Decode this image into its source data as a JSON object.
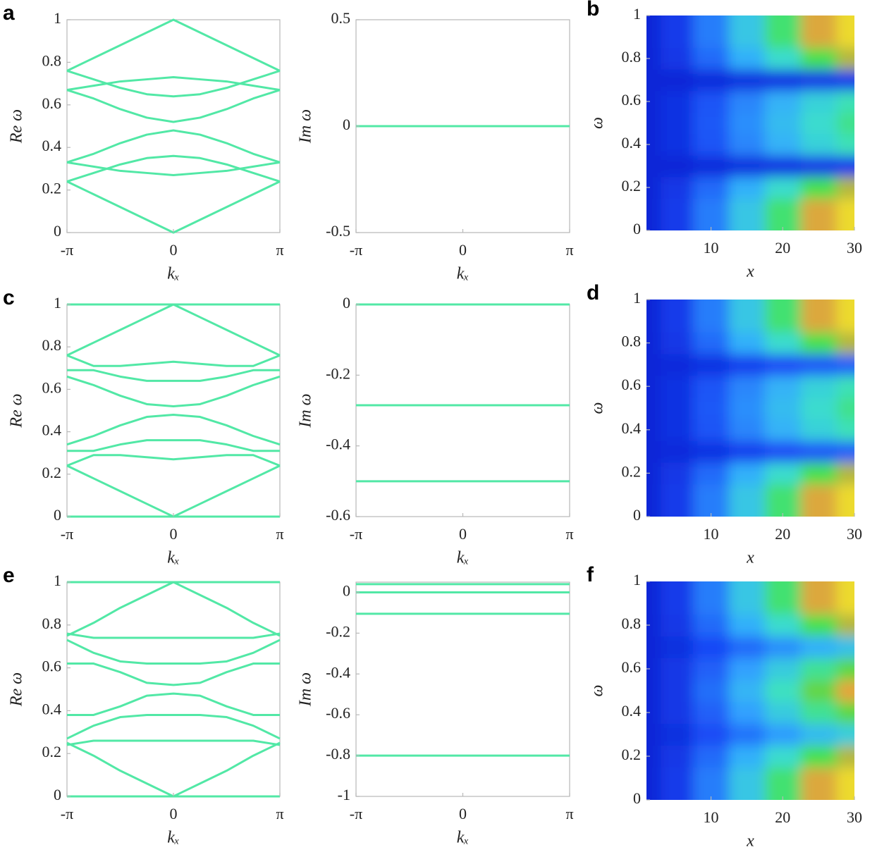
{
  "chart_data": [
    {
      "type": "line",
      "panel_label": "a",
      "xlabel": "kₓ",
      "ylabel": "Re ω",
      "color": "#52e8a6",
      "x": [
        -3.1416,
        -2.3562,
        -1.5708,
        -0.7854,
        0,
        0.7854,
        1.5708,
        2.3562,
        3.1416
      ],
      "xlim": [
        -3.1416,
        3.1416
      ],
      "xticks": [
        {
          "value": -3.1416,
          "label": "-π"
        },
        0,
        {
          "value": 3.1416,
          "label": "π"
        }
      ],
      "ylim": [
        0,
        1
      ],
      "yticks": [
        0,
        0.2,
        0.4,
        0.6,
        0.8,
        1
      ],
      "series": [
        {
          "values": [
            0.24,
            0.18,
            0.12,
            0.06,
            0,
            0.06,
            0.12,
            0.18,
            0.24
          ]
        },
        {
          "values": [
            0.33,
            0.37,
            0.42,
            0.46,
            0.48,
            0.46,
            0.42,
            0.37,
            0.33
          ]
        },
        {
          "values": [
            0.24,
            0.28,
            0.32,
            0.35,
            0.36,
            0.35,
            0.32,
            0.28,
            0.24
          ]
        },
        {
          "values": [
            0.33,
            0.31,
            0.29,
            0.28,
            0.27,
            0.28,
            0.29,
            0.31,
            0.33
          ]
        },
        {
          "values": [
            0.76,
            0.82,
            0.88,
            0.94,
            1,
            0.94,
            0.88,
            0.82,
            0.76
          ]
        },
        {
          "values": [
            0.67,
            0.63,
            0.58,
            0.54,
            0.52,
            0.54,
            0.58,
            0.63,
            0.67
          ]
        },
        {
          "values": [
            0.76,
            0.72,
            0.68,
            0.65,
            0.64,
            0.65,
            0.68,
            0.72,
            0.76
          ]
        },
        {
          "values": [
            0.67,
            0.69,
            0.71,
            0.72,
            0.73,
            0.72,
            0.71,
            0.69,
            0.67
          ]
        }
      ]
    },
    {
      "type": "line",
      "xlabel": "kₓ",
      "ylabel": "Im ω",
      "color": "#52e8a6",
      "x": [
        -3.1416,
        0,
        3.1416
      ],
      "xlim": [
        -3.1416,
        3.1416
      ],
      "xticks": [
        {
          "value": -3.1416,
          "label": "-π"
        },
        0,
        {
          "value": 3.1416,
          "label": "π"
        }
      ],
      "ylim": [
        -0.5,
        0.5
      ],
      "yticks": [
        -0.5,
        0,
        0.5
      ],
      "series": [
        {
          "values": [
            0,
            0,
            0
          ]
        }
      ]
    },
    {
      "type": "heatmap",
      "panel_label": "b",
      "xlabel": "x",
      "ylabel": "ω",
      "x": [
        1,
        5,
        10,
        15,
        20,
        25,
        30
      ],
      "y": [
        0,
        0.1,
        0.2,
        0.3,
        0.4,
        0.5,
        0.6,
        0.7,
        0.8,
        0.9,
        1
      ],
      "xlim": [
        1,
        30
      ],
      "xticks": [
        10,
        20,
        30
      ],
      "ylim": [
        0,
        1
      ],
      "yticks": [
        0,
        0.2,
        0.4,
        0.6,
        0.8,
        1
      ],
      "values": [
        [
          0,
          0.05,
          0.2,
          0.4,
          0.6,
          0.8,
          0.95
        ],
        [
          0,
          0.05,
          0.2,
          0.4,
          0.6,
          0.8,
          0.95
        ],
        [
          0,
          0.04,
          0.16,
          0.32,
          0.48,
          0.64,
          0.76
        ],
        [
          0,
          0,
          0.01,
          0.02,
          0.03,
          0.04,
          0.05
        ],
        [
          0,
          0.03,
          0.11,
          0.22,
          0.33,
          0.44,
          0.52
        ],
        [
          0,
          0.03,
          0.12,
          0.24,
          0.36,
          0.48,
          0.57
        ],
        [
          0,
          0.03,
          0.11,
          0.22,
          0.33,
          0.44,
          0.52
        ],
        [
          0,
          0,
          0.01,
          0.02,
          0.03,
          0.04,
          0.05
        ],
        [
          0,
          0.04,
          0.16,
          0.32,
          0.48,
          0.64,
          0.76
        ],
        [
          0,
          0.05,
          0.2,
          0.4,
          0.6,
          0.8,
          0.95
        ],
        [
          0,
          0.05,
          0.2,
          0.4,
          0.6,
          0.8,
          0.95
        ]
      ]
    },
    {
      "type": "line",
      "panel_label": "c",
      "xlabel": "kₓ",
      "ylabel": "Re ω",
      "color": "#52e8a6",
      "x": [
        -3.1416,
        -2.3562,
        -1.5708,
        -0.7854,
        0,
        0.7854,
        1.5708,
        2.3562,
        3.1416
      ],
      "xlim": [
        -3.1416,
        3.1416
      ],
      "xticks": [
        {
          "value": -3.1416,
          "label": "-π"
        },
        0,
        {
          "value": 3.1416,
          "label": "π"
        }
      ],
      "ylim": [
        0,
        1
      ],
      "yticks": [
        0,
        0.2,
        0.4,
        0.6,
        0.8,
        1
      ],
      "series": [
        {
          "values": [
            1,
            1,
            1,
            1,
            1,
            1,
            1,
            1,
            1
          ]
        },
        {
          "values": [
            0,
            0,
            0,
            0,
            0,
            0,
            0,
            0,
            0
          ]
        },
        {
          "values": [
            0.24,
            0.18,
            0.12,
            0.06,
            0,
            0.06,
            0.12,
            0.18,
            0.24
          ]
        },
        {
          "values": [
            0.76,
            0.82,
            0.88,
            0.94,
            1,
            0.94,
            0.88,
            0.82,
            0.76
          ]
        },
        {
          "values": [
            0.34,
            0.38,
            0.43,
            0.47,
            0.48,
            0.47,
            0.43,
            0.38,
            0.34
          ]
        },
        {
          "values": [
            0.31,
            0.31,
            0.34,
            0.36,
            0.36,
            0.36,
            0.34,
            0.31,
            0.31
          ]
        },
        {
          "values": [
            0.24,
            0.29,
            0.29,
            0.28,
            0.27,
            0.28,
            0.29,
            0.29,
            0.24
          ]
        },
        {
          "values": [
            0.66,
            0.62,
            0.57,
            0.53,
            0.52,
            0.53,
            0.57,
            0.62,
            0.66
          ]
        },
        {
          "values": [
            0.69,
            0.69,
            0.66,
            0.64,
            0.64,
            0.64,
            0.66,
            0.69,
            0.69
          ]
        },
        {
          "values": [
            0.76,
            0.71,
            0.71,
            0.72,
            0.73,
            0.72,
            0.71,
            0.71,
            0.76
          ]
        }
      ]
    },
    {
      "type": "line",
      "xlabel": "kₓ",
      "ylabel": "Im ω",
      "color": "#52e8a6",
      "x": [
        -3.1416,
        0,
        3.1416
      ],
      "xlim": [
        -3.1416,
        3.1416
      ],
      "xticks": [
        {
          "value": -3.1416,
          "label": "-π"
        },
        0,
        {
          "value": 3.1416,
          "label": "π"
        }
      ],
      "ylim": [
        -0.6,
        0
      ],
      "yticks": [
        -0.6,
        -0.4,
        -0.2,
        0
      ],
      "series": [
        {
          "values": [
            0,
            0,
            0
          ]
        },
        {
          "values": [
            -0.285,
            -0.285,
            -0.285
          ]
        },
        {
          "values": [
            -0.5,
            -0.5,
            -0.5
          ]
        }
      ]
    },
    {
      "type": "heatmap",
      "panel_label": "d",
      "xlabel": "x",
      "ylabel": "ω",
      "x": [
        1,
        5,
        10,
        15,
        20,
        25,
        30
      ],
      "y": [
        0,
        0.1,
        0.2,
        0.3,
        0.4,
        0.5,
        0.6,
        0.7,
        0.8,
        0.9,
        1
      ],
      "xlim": [
        1,
        30
      ],
      "xticks": [
        10,
        20,
        30
      ],
      "ylim": [
        0,
        1
      ],
      "yticks": [
        0,
        0.2,
        0.4,
        0.6,
        0.8,
        1
      ],
      "values": [
        [
          0,
          0.05,
          0.2,
          0.4,
          0.6,
          0.8,
          0.95
        ],
        [
          0,
          0.05,
          0.2,
          0.4,
          0.6,
          0.8,
          0.95
        ],
        [
          0,
          0.04,
          0.16,
          0.32,
          0.48,
          0.64,
          0.76
        ],
        [
          0,
          0.01,
          0.03,
          0.06,
          0.09,
          0.12,
          0.14
        ],
        [
          0,
          0.03,
          0.11,
          0.22,
          0.33,
          0.44,
          0.52
        ],
        [
          0,
          0.03,
          0.12,
          0.24,
          0.36,
          0.48,
          0.57
        ],
        [
          0,
          0.03,
          0.11,
          0.22,
          0.33,
          0.44,
          0.52
        ],
        [
          0,
          0.01,
          0.03,
          0.06,
          0.09,
          0.12,
          0.14
        ],
        [
          0,
          0.04,
          0.16,
          0.32,
          0.48,
          0.64,
          0.76
        ],
        [
          0,
          0.05,
          0.2,
          0.4,
          0.6,
          0.8,
          0.95
        ],
        [
          0,
          0.05,
          0.2,
          0.4,
          0.6,
          0.8,
          0.95
        ]
      ]
    },
    {
      "type": "line",
      "panel_label": "e",
      "xlabel": "kₓ",
      "ylabel": "Re ω",
      "color": "#52e8a6",
      "x": [
        -3.1416,
        -2.3562,
        -1.5708,
        -0.7854,
        0,
        0.7854,
        1.5708,
        2.3562,
        3.1416
      ],
      "xlim": [
        -3.1416,
        3.1416
      ],
      "xticks": [
        {
          "value": -3.1416,
          "label": "-π"
        },
        0,
        {
          "value": 3.1416,
          "label": "π"
        }
      ],
      "ylim": [
        0,
        1
      ],
      "yticks": [
        0,
        0.2,
        0.4,
        0.6,
        0.8,
        1
      ],
      "series": [
        {
          "values": [
            1,
            1,
            1,
            1,
            1,
            1,
            1,
            1,
            1
          ]
        },
        {
          "values": [
            0,
            0,
            0,
            0,
            0,
            0,
            0,
            0,
            0
          ]
        },
        {
          "values": [
            0.25,
            0.19,
            0.12,
            0.06,
            0,
            0.06,
            0.12,
            0.19,
            0.25
          ]
        },
        {
          "values": [
            0.75,
            0.81,
            0.88,
            0.94,
            1,
            0.94,
            0.88,
            0.81,
            0.75
          ]
        },
        {
          "values": [
            0.38,
            0.38,
            0.42,
            0.47,
            0.48,
            0.47,
            0.42,
            0.38,
            0.38
          ]
        },
        {
          "values": [
            0.27,
            0.33,
            0.37,
            0.38,
            0.38,
            0.38,
            0.37,
            0.33,
            0.27
          ]
        },
        {
          "values": [
            0.24,
            0.26,
            0.26,
            0.26,
            0.26,
            0.26,
            0.26,
            0.26,
            0.24
          ]
        },
        {
          "values": [
            0.62,
            0.62,
            0.58,
            0.53,
            0.52,
            0.53,
            0.58,
            0.62,
            0.62
          ]
        },
        {
          "values": [
            0.73,
            0.67,
            0.63,
            0.62,
            0.62,
            0.62,
            0.63,
            0.67,
            0.73
          ]
        },
        {
          "values": [
            0.76,
            0.74,
            0.74,
            0.74,
            0.74,
            0.74,
            0.74,
            0.74,
            0.76
          ]
        }
      ]
    },
    {
      "type": "line",
      "xlabel": "kₓ",
      "ylabel": "Im ω",
      "color": "#52e8a6",
      "x": [
        -3.1416,
        0,
        3.1416
      ],
      "xlim": [
        -3.1416,
        3.1416
      ],
      "xticks": [
        {
          "value": -3.1416,
          "label": "-π"
        },
        0,
        {
          "value": 3.1416,
          "label": "π"
        }
      ],
      "ylim": [
        -1,
        0.05
      ],
      "yticks": [
        -1,
        -0.8,
        -0.6,
        -0.4,
        -0.2,
        0
      ],
      "series": [
        {
          "values": [
            0.04,
            0.04,
            0.04
          ]
        },
        {
          "values": [
            0,
            0,
            0
          ]
        },
        {
          "values": [
            -0.105,
            -0.105,
            -0.105
          ]
        },
        {
          "values": [
            -0.8,
            -0.8,
            -0.8
          ]
        }
      ]
    },
    {
      "type": "heatmap",
      "panel_label": "f",
      "xlabel": "x",
      "ylabel": "ω",
      "x": [
        1,
        5,
        10,
        15,
        20,
        25,
        30
      ],
      "y": [
        0,
        0.1,
        0.2,
        0.3,
        0.4,
        0.5,
        0.6,
        0.7,
        0.8,
        0.9,
        1
      ],
      "xlim": [
        1,
        30
      ],
      "xticks": [
        10,
        20,
        30
      ],
      "ylim": [
        0,
        1
      ],
      "yticks": [
        0,
        0.2,
        0.4,
        0.6,
        0.8,
        1
      ],
      "values": [
        [
          0,
          0.05,
          0.2,
          0.4,
          0.6,
          0.8,
          0.95
        ],
        [
          0,
          0.05,
          0.2,
          0.4,
          0.6,
          0.8,
          0.95
        ],
        [
          0,
          0.04,
          0.16,
          0.32,
          0.48,
          0.64,
          0.76
        ],
        [
          0,
          0.02,
          0.09,
          0.18,
          0.27,
          0.36,
          0.43
        ],
        [
          0,
          0.04,
          0.14,
          0.28,
          0.42,
          0.56,
          0.67
        ],
        [
          0,
          0.04,
          0.17,
          0.34,
          0.51,
          0.68,
          0.81
        ],
        [
          0,
          0.04,
          0.14,
          0.28,
          0.42,
          0.56,
          0.67
        ],
        [
          0,
          0.02,
          0.08,
          0.16,
          0.24,
          0.32,
          0.38
        ],
        [
          0,
          0.04,
          0.16,
          0.32,
          0.48,
          0.64,
          0.76
        ],
        [
          0,
          0.05,
          0.2,
          0.4,
          0.6,
          0.8,
          0.95
        ],
        [
          0,
          0.05,
          0.2,
          0.4,
          0.6,
          0.8,
          0.95
        ]
      ]
    }
  ]
}
